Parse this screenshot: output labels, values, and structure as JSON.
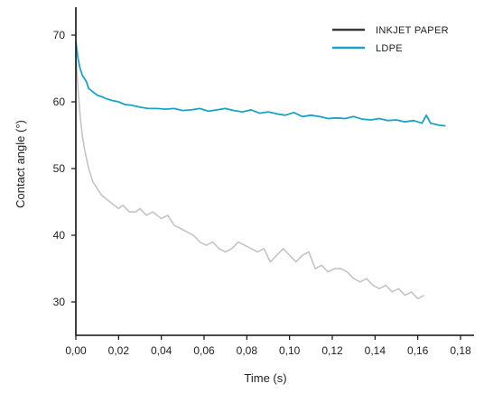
{
  "chart_data": {
    "type": "line",
    "xlabel": "Time (s)",
    "ylabel": "Contact angle (°)",
    "xlim": [
      0,
      0.18
    ],
    "ylim": [
      25,
      75
    ],
    "xticks": [
      {
        "value": 0.0,
        "label": "0,00"
      },
      {
        "value": 0.02,
        "label": "0,02"
      },
      {
        "value": 0.04,
        "label": "0,04"
      },
      {
        "value": 0.06,
        "label": "0,06"
      },
      {
        "value": 0.08,
        "label": "0,08"
      },
      {
        "value": 0.1,
        "label": "0,10"
      },
      {
        "value": 0.12,
        "label": "0,12"
      },
      {
        "value": 0.14,
        "label": "0,14"
      },
      {
        "value": 0.16,
        "label": "0,16"
      },
      {
        "value": 0.18,
        "label": "0,18"
      }
    ],
    "yticks": [
      {
        "value": 30,
        "label": "30"
      },
      {
        "value": 40,
        "label": "40"
      },
      {
        "value": 50,
        "label": "50"
      },
      {
        "value": 60,
        "label": "60"
      },
      {
        "value": 70,
        "label": "70"
      }
    ],
    "grid": false,
    "legend_position": "top-right",
    "legend": [
      {
        "label": "INKJET PAPER",
        "color": "#3a3a3a"
      },
      {
        "label": "LDPE",
        "color": "#1aa3c4"
      }
    ],
    "series": [
      {
        "name": "INKJET PAPER",
        "color": "#c4c4c4",
        "x": [
          0.0,
          0.001,
          0.002,
          0.003,
          0.004,
          0.005,
          0.006,
          0.007,
          0.008,
          0.01,
          0.012,
          0.014,
          0.016,
          0.018,
          0.02,
          0.022,
          0.025,
          0.028,
          0.03,
          0.033,
          0.036,
          0.04,
          0.043,
          0.046,
          0.049,
          0.052,
          0.055,
          0.058,
          0.061,
          0.064,
          0.067,
          0.07,
          0.073,
          0.076,
          0.079,
          0.082,
          0.085,
          0.088,
          0.091,
          0.094,
          0.097,
          0.1,
          0.103,
          0.106,
          0.109,
          0.112,
          0.115,
          0.118,
          0.121,
          0.124,
          0.127,
          0.13,
          0.133,
          0.136,
          0.139,
          0.142,
          0.145,
          0.148,
          0.151,
          0.154,
          0.157,
          0.16,
          0.163
        ],
        "y": [
          67,
          62,
          58,
          55,
          53,
          51.5,
          50,
          49,
          48,
          47,
          46,
          45.5,
          45,
          44.5,
          44,
          44.5,
          43.5,
          43.5,
          44,
          43,
          43.5,
          42.5,
          43,
          41.5,
          41,
          40.5,
          40,
          39,
          38.5,
          39,
          38,
          37.5,
          38,
          39,
          38.5,
          38,
          37.5,
          38,
          36,
          37,
          38,
          37,
          36,
          37,
          37.5,
          35,
          35.5,
          34.5,
          35,
          35,
          34.5,
          33.5,
          33,
          33.5,
          32.5,
          32,
          32.5,
          31.5,
          32,
          31,
          31.5,
          30.5,
          31
        ]
      },
      {
        "name": "LDPE",
        "color": "#1aa3c4",
        "x": [
          0.0,
          0.001,
          0.002,
          0.003,
          0.004,
          0.005,
          0.006,
          0.008,
          0.01,
          0.012,
          0.014,
          0.017,
          0.02,
          0.023,
          0.026,
          0.03,
          0.034,
          0.038,
          0.042,
          0.046,
          0.05,
          0.054,
          0.058,
          0.062,
          0.066,
          0.07,
          0.074,
          0.078,
          0.082,
          0.086,
          0.09,
          0.094,
          0.098,
          0.102,
          0.106,
          0.11,
          0.114,
          0.118,
          0.122,
          0.126,
          0.13,
          0.134,
          0.138,
          0.142,
          0.146,
          0.15,
          0.154,
          0.158,
          0.162,
          0.164,
          0.166,
          0.17,
          0.173
        ],
        "y": [
          69,
          66.5,
          65,
          64,
          63.5,
          63,
          62,
          61.5,
          61,
          60.8,
          60.5,
          60.2,
          60,
          59.6,
          59.5,
          59.2,
          59,
          59,
          58.9,
          59,
          58.7,
          58.8,
          59,
          58.6,
          58.8,
          59,
          58.7,
          58.5,
          58.8,
          58.3,
          58.5,
          58.2,
          58,
          58.4,
          57.8,
          58,
          57.8,
          57.5,
          57.6,
          57.5,
          57.8,
          57.4,
          57.3,
          57.5,
          57.2,
          57.3,
          57,
          57.2,
          56.8,
          58,
          56.8,
          56.5,
          56.4
        ]
      }
    ]
  }
}
